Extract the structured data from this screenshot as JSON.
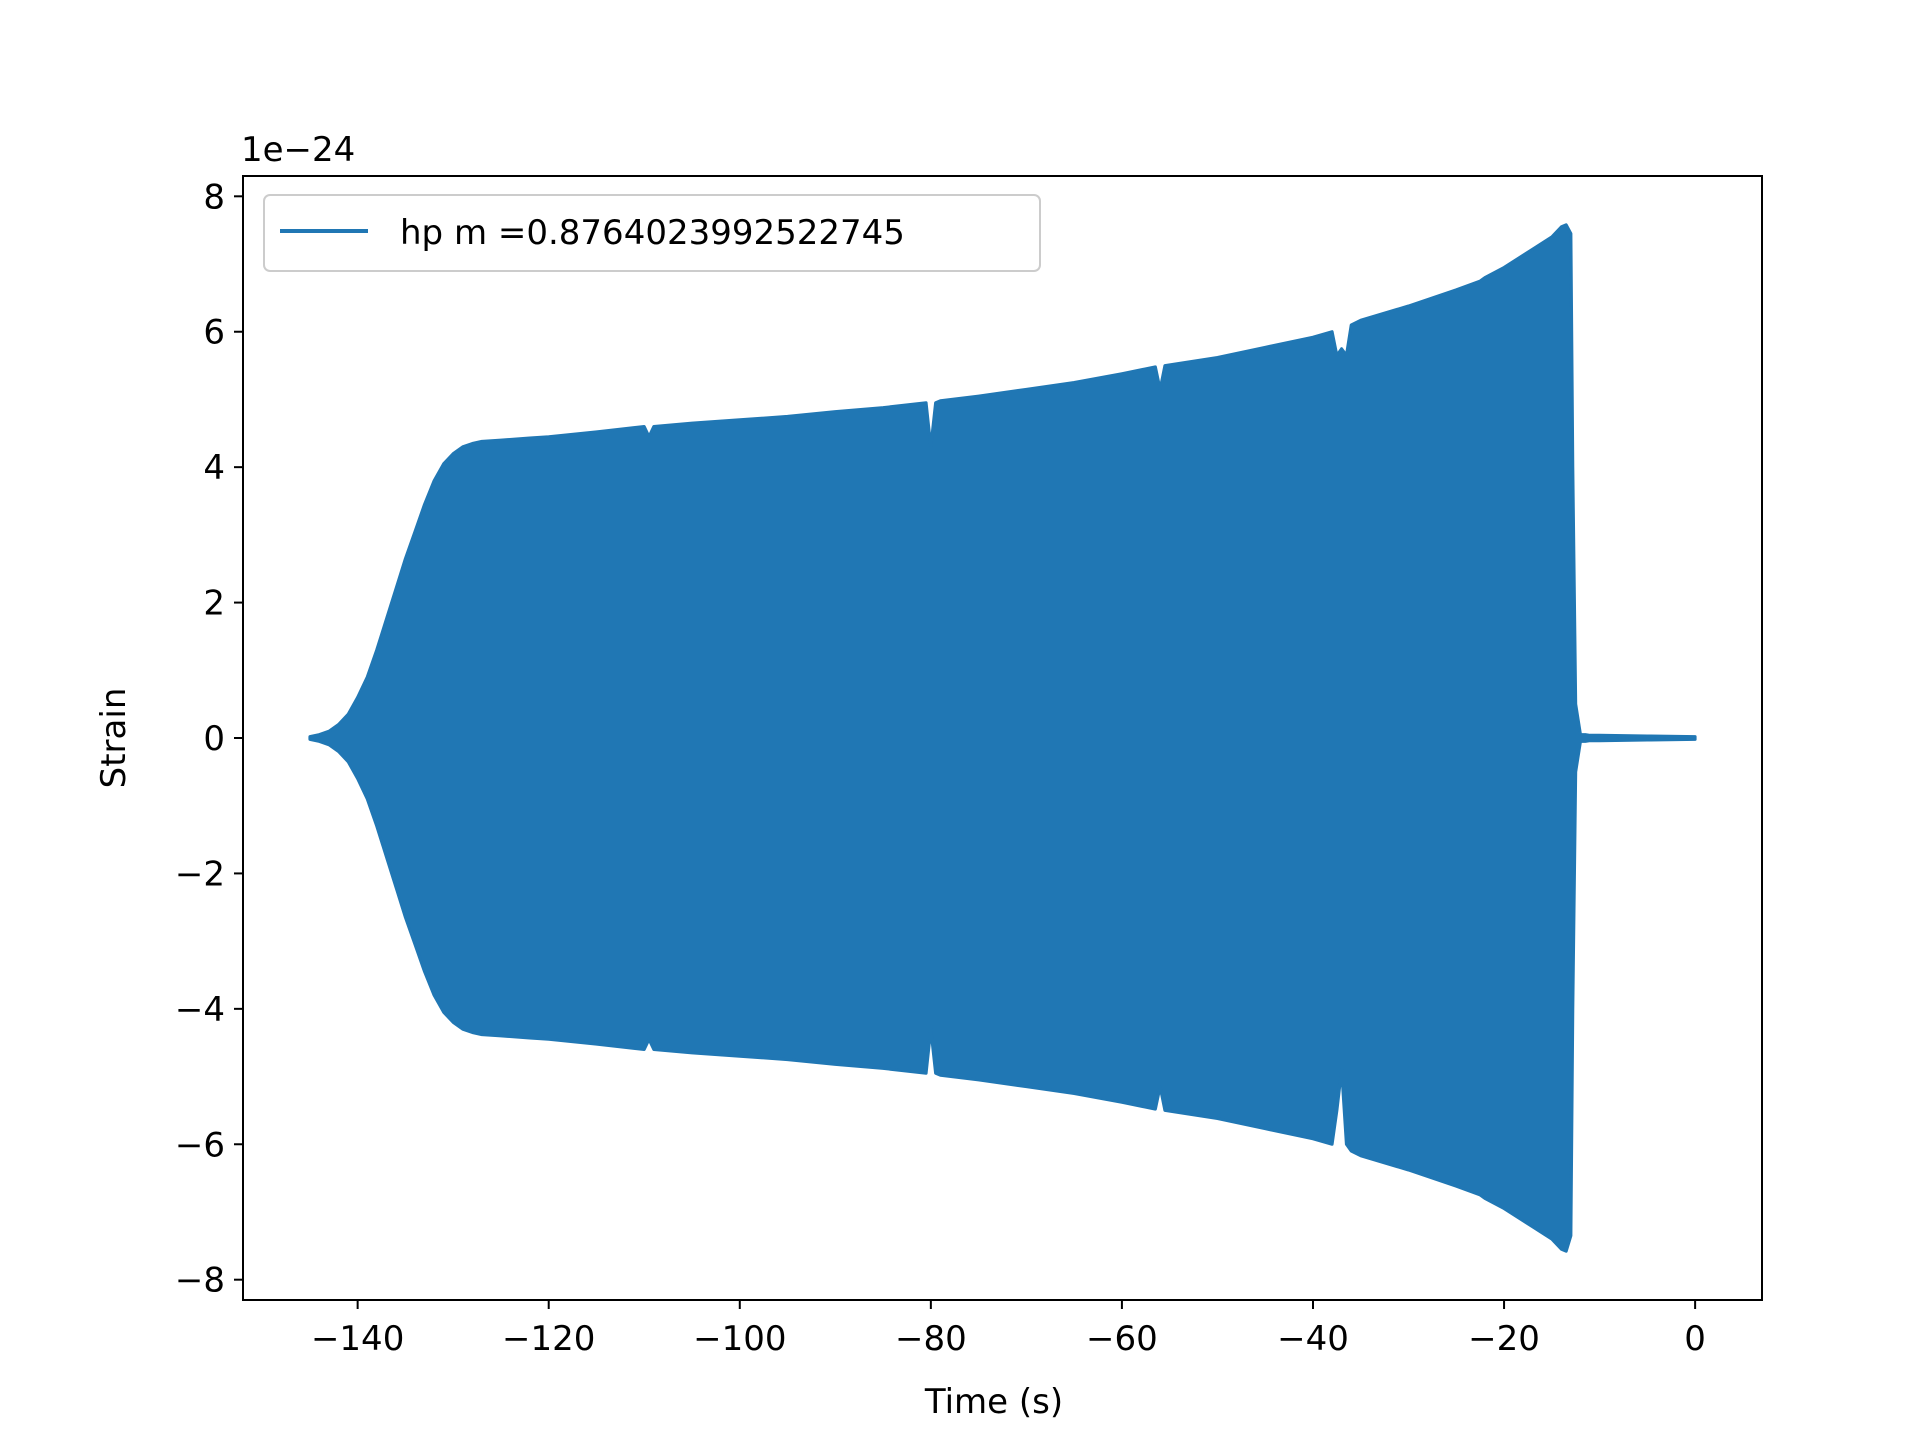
{
  "chart_data": {
    "type": "line",
    "title": "",
    "xlabel": "Time (s)",
    "ylabel": "Strain",
    "y_offset_label": "1e−24",
    "y_scale_exponent": -24,
    "xlim": [
      -152,
      7
    ],
    "ylim": [
      -8.3,
      8.3
    ],
    "grid": false,
    "legend_position": "upper left",
    "x_ticks": [
      -140,
      -120,
      -100,
      -80,
      -60,
      -40,
      -20,
      0
    ],
    "x_tick_labels": [
      "−140",
      "−120",
      "−100",
      "−80",
      "−60",
      "−40",
      "−20",
      "0"
    ],
    "y_ticks": [
      -8,
      -6,
      -4,
      -2,
      0,
      2,
      4,
      6,
      8
    ],
    "y_tick_labels": [
      "−8",
      "−6",
      "−4",
      "−2",
      "0",
      "2",
      "4",
      "6",
      "8"
    ],
    "series": [
      {
        "name": "hp m =0.8764023992522745",
        "color": "#2077b4",
        "rendering": "dense oscillation filling envelope",
        "envelope_x": [
          -145,
          -144,
          -143,
          -142,
          -141,
          -140,
          -139,
          -138,
          -137,
          -136,
          -135,
          -134,
          -133,
          -132,
          -131,
          -130,
          -129,
          -128,
          -127,
          -125,
          -122,
          -120,
          -115,
          -110,
          -109.5,
          -109,
          -105,
          -100,
          -95,
          -90,
          -85,
          -80.5,
          -80,
          -79.5,
          -79,
          -75,
          -70,
          -65,
          -60,
          -56.5,
          -56,
          -55.5,
          -50,
          -45,
          -40,
          -38,
          -37.5,
          -37,
          -36.5,
          -36,
          -35,
          -30,
          -25,
          -22.5,
          -22,
          -20,
          -17,
          -15,
          -14,
          -13.5,
          -13,
          -12.8,
          -12.5,
          -12,
          -11.5,
          -11,
          -10,
          -5,
          0
        ],
        "envelope_upper": [
          0.02,
          0.05,
          0.1,
          0.2,
          0.35,
          0.6,
          0.9,
          1.3,
          1.75,
          2.2,
          2.65,
          3.05,
          3.45,
          3.8,
          4.05,
          4.2,
          4.3,
          4.35,
          4.38,
          4.4,
          4.43,
          4.45,
          4.52,
          4.6,
          4.45,
          4.6,
          4.65,
          4.7,
          4.75,
          4.82,
          4.88,
          4.95,
          4.3,
          4.95,
          4.98,
          5.05,
          5.15,
          5.25,
          5.38,
          5.48,
          5.15,
          5.5,
          5.62,
          5.77,
          5.92,
          6.0,
          5.65,
          5.75,
          5.65,
          6.1,
          6.17,
          6.38,
          6.62,
          6.75,
          6.8,
          6.95,
          7.22,
          7.4,
          7.55,
          7.58,
          7.45,
          4.0,
          0.5,
          0.05,
          0.05,
          0.04,
          0.04,
          0.03,
          0.02
        ],
        "envelope_lower": [
          -0.02,
          -0.05,
          -0.1,
          -0.2,
          -0.35,
          -0.6,
          -0.9,
          -1.3,
          -1.75,
          -2.2,
          -2.65,
          -3.05,
          -3.45,
          -3.8,
          -4.05,
          -4.2,
          -4.3,
          -4.35,
          -4.38,
          -4.4,
          -4.43,
          -4.45,
          -4.52,
          -4.6,
          -4.45,
          -4.6,
          -4.65,
          -4.7,
          -4.75,
          -4.82,
          -4.88,
          -4.95,
          -4.3,
          -4.95,
          -4.98,
          -5.05,
          -5.15,
          -5.25,
          -5.38,
          -5.48,
          -5.15,
          -5.5,
          -5.62,
          -5.77,
          -5.92,
          -6.0,
          -5.5,
          -4.9,
          -6.0,
          -6.1,
          -6.17,
          -6.38,
          -6.62,
          -6.75,
          -6.8,
          -6.95,
          -7.22,
          -7.4,
          -7.55,
          -7.58,
          -7.35,
          -4.0,
          -0.5,
          -0.05,
          -0.05,
          -0.04,
          -0.04,
          -0.03,
          -0.02
        ]
      }
    ]
  }
}
